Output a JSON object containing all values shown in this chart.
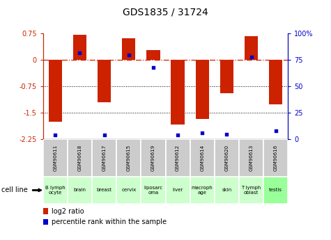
{
  "title": "GDS1835 / 31724",
  "samples": [
    "GSM90611",
    "GSM90618",
    "GSM90617",
    "GSM90615",
    "GSM90619",
    "GSM90612",
    "GSM90614",
    "GSM90620",
    "GSM90613",
    "GSM90616"
  ],
  "cell_lines": [
    "B lymph\nocyte",
    "brain",
    "breast",
    "cervix",
    "liposarc\noma",
    "liver",
    "macroph\nage",
    "skin",
    "T lymph\noblast",
    "testis"
  ],
  "log2_ratio": [
    -1.75,
    0.72,
    -1.2,
    0.62,
    0.28,
    -1.83,
    -1.67,
    -0.95,
    0.68,
    -1.25
  ],
  "percentile_rank": [
    4,
    82,
    4,
    80,
    68,
    4,
    6,
    5,
    78,
    8
  ],
  "bar_color": "#cc2200",
  "dot_color": "#0000cc",
  "ylim": [
    -2.25,
    0.75
  ],
  "y_ticks_left": [
    0.75,
    0.0,
    -0.75,
    -1.5,
    -2.25
  ],
  "y_ticks_right": [
    100,
    75,
    50,
    25,
    0
  ],
  "dotted_lines": [
    -0.75,
    -1.5
  ],
  "bar_width": 0.55,
  "legend_red_label": "log2 ratio",
  "legend_blue_label": "percentile rank within the sample",
  "cell_line_label": "cell line",
  "background_color": "#ffffff",
  "gsm_bg": "#cccccc",
  "cl_colors": [
    "#ccffcc",
    "#ccffcc",
    "#ccffcc",
    "#ccffcc",
    "#ccffcc",
    "#ccffcc",
    "#ccffcc",
    "#ccffcc",
    "#ccffcc",
    "#99ff99"
  ]
}
